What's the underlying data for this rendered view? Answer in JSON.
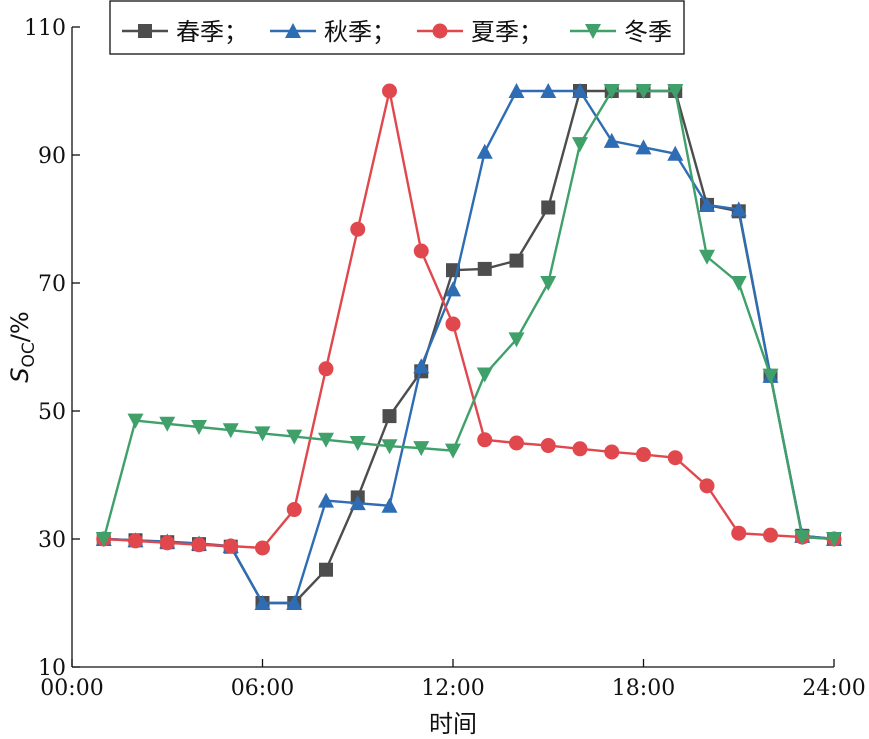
{
  "chart_data": {
    "type": "line",
    "title": "",
    "xlabel": "时间",
    "ylabel": {
      "main": "S",
      "sub": "OC",
      "suffix": "/%"
    },
    "x_ticks": [
      "00:00",
      "06:00",
      "12:00",
      "18:00",
      "24:00"
    ],
    "y_ticks": [
      "10",
      "30",
      "50",
      "70",
      "90",
      "110"
    ],
    "xlim": [
      0,
      24
    ],
    "ylim": [
      10,
      110
    ],
    "grid": false,
    "legend_position": "top",
    "x": [
      1,
      2,
      3,
      4,
      5,
      6,
      7,
      8,
      9,
      10,
      11,
      12,
      13,
      14,
      15,
      16,
      17,
      18,
      19,
      20,
      21,
      22,
      23,
      24
    ],
    "series": [
      {
        "name": "春季；",
        "color": "#4d4d4d",
        "marker": "square",
        "values": [
          30,
          29.8,
          29.5,
          29.2,
          28.8,
          20,
          20,
          25.2,
          36.5,
          49.2,
          56.2,
          72,
          72.2,
          73.5,
          81.8,
          100,
          100,
          100,
          100,
          82.2,
          81.2,
          55.5,
          30.5,
          30
        ]
      },
      {
        "name": "秋季；",
        "color": "#2e6db4",
        "marker": "triangle-up",
        "values": [
          30,
          29.8,
          29.6,
          29.3,
          28.9,
          20,
          20,
          36,
          35.6,
          35.2,
          57,
          69,
          90.5,
          100,
          100,
          100,
          92.2,
          91.2,
          90.2,
          82.2,
          81.5,
          55.5,
          30.5,
          30
        ]
      },
      {
        "name": "夏季；",
        "color": "#e0484e",
        "marker": "circle",
        "values": [
          30,
          29.7,
          29.4,
          29.1,
          28.9,
          28.6,
          34.6,
          56.6,
          78.4,
          100,
          75,
          63.6,
          45.5,
          45,
          44.6,
          44.1,
          43.6,
          43.2,
          42.7,
          38.3,
          30.9,
          30.6,
          30.3,
          30
        ]
      },
      {
        "name": "冬季",
        "color": "#40a06a",
        "marker": "triangle-down",
        "values": [
          30,
          48.5,
          48,
          47.5,
          47,
          46.5,
          46,
          45.5,
          45,
          44.5,
          44.2,
          43.8,
          55.7,
          61.2,
          70,
          91.7,
          100,
          100,
          100,
          74.1,
          70,
          55.5,
          30.3,
          30
        ]
      }
    ]
  }
}
